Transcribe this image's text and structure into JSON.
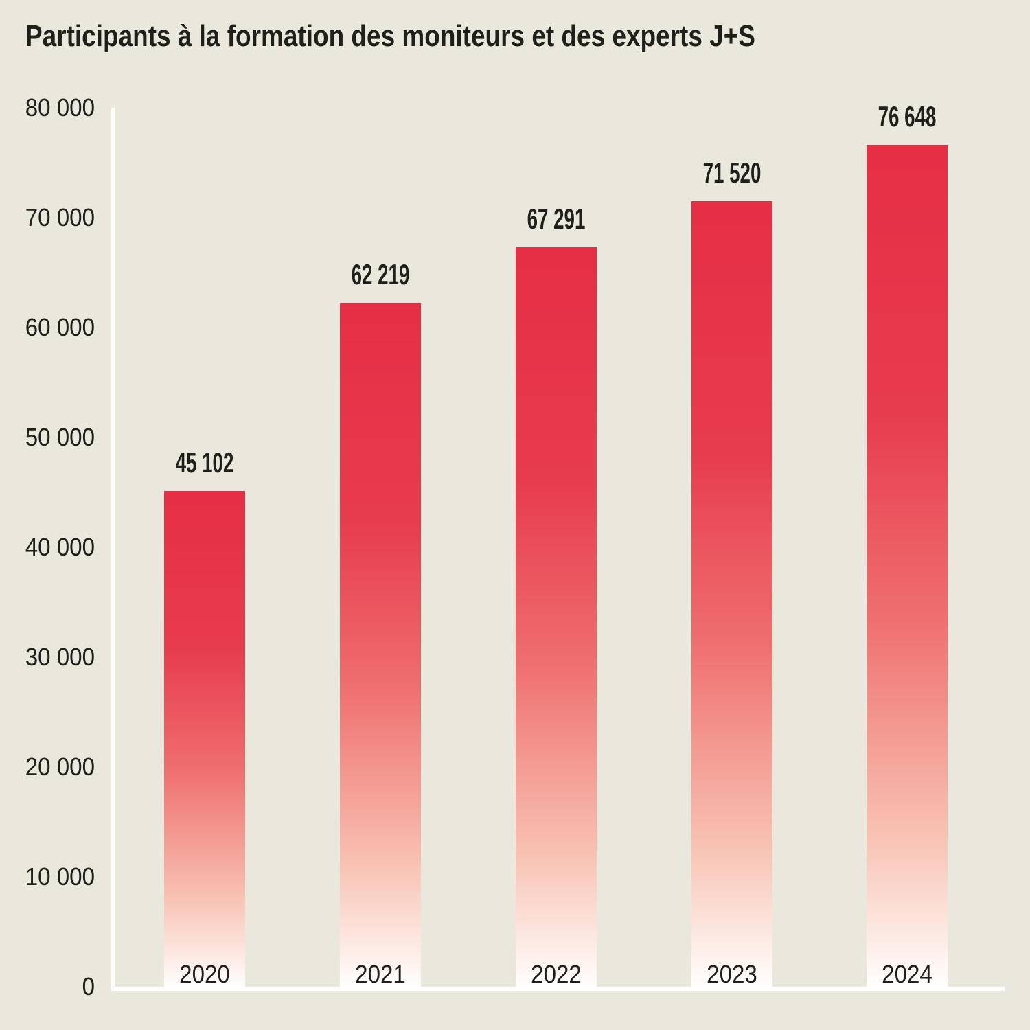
{
  "title": "Participants à la formation des moniteurs et des experts J+S",
  "colors": {
    "background": "#EAE8DC",
    "text": "#20201A",
    "axis": "#FFFFFF",
    "bar_red": "#E62E45",
    "bar_gradient_stops": [
      "#E62E45",
      "#E73C4E",
      "#EF6E6E",
      "#F8C2B2",
      "#FFFEFD"
    ]
  },
  "chart_data": {
    "type": "bar",
    "title": "Participants à la formation des moniteurs et des experts J+S",
    "categories": [
      "2020",
      "2021",
      "2022",
      "2023",
      "2024"
    ],
    "values": [
      45102,
      62219,
      67291,
      71520,
      76648
    ],
    "value_labels": [
      "45 102",
      "62 219",
      "67 291",
      "71 520",
      "76 648"
    ],
    "xlabel": "",
    "ylabel": "",
    "ylim": [
      0,
      80000
    ],
    "ytick_step": 10000,
    "yticks": [
      0,
      10000,
      20000,
      30000,
      40000,
      50000,
      60000,
      70000,
      80000
    ],
    "ytick_labels": [
      "0",
      "10 000",
      "20 000",
      "30 000",
      "40 000",
      "50 000",
      "60 000",
      "70 000",
      "80 000"
    ],
    "grid": false,
    "legend": "none",
    "bar_style": "red fading to white toward the bottom of each bar"
  }
}
